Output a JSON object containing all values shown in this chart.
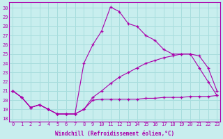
{
  "xlabel": "Windchill (Refroidissement éolien,°C)",
  "bg_color": "#c8eeee",
  "grid_color": "#a8dddd",
  "line_color": "#aa00aa",
  "x_ticks": [
    0,
    1,
    2,
    3,
    4,
    5,
    6,
    7,
    8,
    9,
    10,
    11,
    12,
    13,
    14,
    15,
    16,
    17,
    18,
    19,
    20,
    21,
    22,
    23
  ],
  "y_ticks": [
    18,
    19,
    20,
    21,
    22,
    23,
    24,
    25,
    26,
    27,
    28,
    29,
    30
  ],
  "xlim": [
    -0.4,
    23.4
  ],
  "ylim": [
    17.7,
    30.6
  ],
  "line1_x": [
    0,
    1,
    2,
    3,
    4,
    5,
    6,
    7,
    8,
    9,
    10,
    11,
    12,
    13,
    14,
    15,
    16,
    17,
    18,
    19,
    20,
    21,
    22,
    23
  ],
  "line1_y": [
    21.0,
    20.3,
    19.2,
    19.5,
    19.0,
    18.5,
    18.5,
    18.5,
    19.0,
    20.0,
    20.1,
    20.1,
    20.1,
    20.1,
    20.1,
    20.2,
    20.2,
    20.3,
    20.3,
    20.3,
    20.4,
    20.4,
    20.4,
    20.5
  ],
  "line2_x": [
    0,
    1,
    2,
    3,
    4,
    5,
    6,
    7,
    8,
    9,
    10,
    11,
    12,
    13,
    14,
    15,
    16,
    17,
    18,
    19,
    20,
    21,
    22,
    23
  ],
  "line2_y": [
    21.0,
    20.3,
    19.2,
    19.5,
    19.0,
    18.5,
    18.5,
    18.5,
    19.0,
    20.3,
    21.0,
    21.8,
    22.5,
    23.0,
    23.5,
    24.0,
    24.3,
    24.6,
    24.8,
    25.0,
    25.0,
    24.8,
    23.5,
    21.0
  ],
  "line3_x": [
    0,
    1,
    2,
    3,
    4,
    5,
    6,
    7,
    8,
    9,
    10,
    11,
    12,
    13,
    14,
    15,
    16,
    17,
    18,
    19,
    20,
    21,
    22,
    23
  ],
  "line3_y": [
    21.0,
    20.3,
    19.2,
    19.5,
    19.0,
    18.5,
    18.5,
    18.5,
    24.0,
    26.0,
    27.5,
    30.1,
    29.6,
    28.3,
    28.0,
    27.0,
    26.5,
    25.5,
    25.0,
    25.0,
    25.0,
    23.5,
    22.0,
    20.5
  ]
}
